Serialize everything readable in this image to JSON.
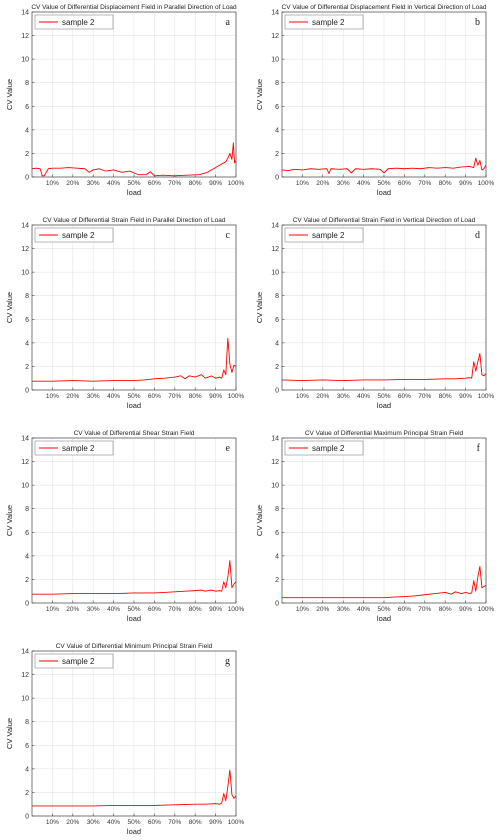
{
  "chart_data": [
    {
      "type": "line",
      "panel": "a",
      "title": "CV Value of Differential Displacement Field in Parallel Direction of Load",
      "xlabel": "load",
      "ylabel": "CV Value",
      "xlim": [
        0,
        100
      ],
      "ylim": [
        0,
        14
      ],
      "xticks": [
        10,
        20,
        30,
        40,
        50,
        60,
        70,
        80,
        90,
        100
      ],
      "xtick_labels": [
        "10%",
        "20%",
        "30%",
        "40%",
        "50%",
        "60%",
        "70%",
        "80%",
        "90%",
        "100%"
      ],
      "yticks": [
        0,
        2,
        4,
        6,
        8,
        10,
        12,
        14
      ],
      "grid": true,
      "legend_position": "top-left",
      "series": [
        {
          "name": "sample 2",
          "color": "#ff0000",
          "x": [
            0,
            2,
            4,
            5,
            6,
            8,
            10,
            14,
            18,
            22,
            26,
            28,
            30,
            33,
            36,
            40,
            44,
            48,
            52,
            56,
            58,
            60,
            64,
            70,
            76,
            82,
            86,
            89,
            91,
            93,
            95,
            96,
            97,
            98,
            98.7,
            99.3,
            100
          ],
          "y": [
            0.7,
            0.75,
            0.7,
            0.1,
            0.1,
            0.7,
            0.75,
            0.75,
            0.8,
            0.75,
            0.7,
            0.4,
            0.6,
            0.7,
            0.5,
            0.6,
            0.4,
            0.5,
            0.2,
            0.2,
            0.45,
            0.1,
            0.15,
            0.1,
            0.15,
            0.2,
            0.4,
            0.7,
            0.9,
            1.1,
            1.3,
            1.6,
            2.0,
            1.5,
            2.9,
            1.2,
            1.4
          ]
        }
      ]
    },
    {
      "type": "line",
      "panel": "b",
      "title": "CV Value of Differential Displacement Field in Vertical Direction of Load",
      "xlabel": "load",
      "ylabel": "CV Value",
      "xlim": [
        0,
        100
      ],
      "ylim": [
        0,
        14
      ],
      "xticks": [
        10,
        20,
        30,
        40,
        50,
        60,
        70,
        80,
        90,
        100
      ],
      "xtick_labels": [
        "10%",
        "20%",
        "30%",
        "40%",
        "50%",
        "60%",
        "70%",
        "80%",
        "90%",
        "100%"
      ],
      "yticks": [
        0,
        2,
        4,
        6,
        8,
        10,
        12,
        14
      ],
      "grid": true,
      "legend_position": "top-left",
      "series": [
        {
          "name": "sample 2",
          "color": "#ff0000",
          "x": [
            0,
            3,
            6,
            10,
            14,
            18,
            22,
            23,
            24,
            28,
            32,
            34,
            36,
            40,
            44,
            48,
            50,
            52,
            56,
            60,
            64,
            68,
            72,
            76,
            80,
            84,
            88,
            92,
            94,
            95,
            96,
            97,
            98,
            99,
            100
          ],
          "y": [
            0.6,
            0.55,
            0.65,
            0.6,
            0.7,
            0.65,
            0.7,
            0.3,
            0.7,
            0.65,
            0.7,
            0.35,
            0.7,
            0.65,
            0.7,
            0.65,
            0.35,
            0.7,
            0.75,
            0.7,
            0.75,
            0.7,
            0.8,
            0.75,
            0.8,
            0.75,
            0.85,
            0.9,
            0.8,
            1.6,
            1.0,
            1.4,
            0.6,
            0.7,
            1.0
          ]
        }
      ]
    },
    {
      "type": "line",
      "panel": "c",
      "title": "CV Value of Differential Strain Field in Parallel Direction of Load",
      "xlabel": "load",
      "ylabel": "CV Value",
      "xlim": [
        0,
        100
      ],
      "ylim": [
        0,
        14
      ],
      "xticks": [
        10,
        20,
        30,
        40,
        50,
        60,
        70,
        80,
        90,
        100
      ],
      "xtick_labels": [
        "10%",
        "20%",
        "30%",
        "40%",
        "50%",
        "60%",
        "70%",
        "80%",
        "90%",
        "100%"
      ],
      "yticks": [
        0,
        2,
        4,
        6,
        8,
        10,
        12,
        14
      ],
      "grid": true,
      "legend_position": "top-left",
      "series": [
        {
          "name": "sample 2",
          "color": "#ff0000",
          "x": [
            0,
            10,
            20,
            30,
            40,
            50,
            55,
            60,
            65,
            70,
            73,
            75,
            77,
            80,
            83,
            85,
            88,
            90,
            92,
            93,
            94,
            95,
            96,
            97,
            98,
            99,
            100
          ],
          "y": [
            0.75,
            0.75,
            0.8,
            0.75,
            0.8,
            0.8,
            0.85,
            0.95,
            1.0,
            1.1,
            1.2,
            0.95,
            1.2,
            1.1,
            1.3,
            1.0,
            1.2,
            1.0,
            1.1,
            1.0,
            1.7,
            1.3,
            4.4,
            2.2,
            1.5,
            2.1,
            2.0
          ]
        }
      ]
    },
    {
      "type": "line",
      "panel": "d",
      "title": "CV Value of Differential Strain Field in Vertical Direction of Load",
      "xlabel": "load",
      "ylabel": "CV Value",
      "xlim": [
        0,
        100
      ],
      "ylim": [
        0,
        14
      ],
      "xticks": [
        10,
        20,
        30,
        40,
        50,
        60,
        70,
        80,
        90,
        100
      ],
      "xtick_labels": [
        "10%",
        "20%",
        "30%",
        "40%",
        "50%",
        "60%",
        "70%",
        "80%",
        "90%",
        "100%"
      ],
      "yticks": [
        0,
        2,
        4,
        6,
        8,
        10,
        12,
        14
      ],
      "grid": true,
      "legend_position": "top-left",
      "series": [
        {
          "name": "sample 2",
          "color": "#ff0000",
          "x": [
            0,
            10,
            20,
            30,
            40,
            50,
            60,
            70,
            80,
            85,
            90,
            92,
            93,
            94,
            95,
            96,
            97,
            98,
            99,
            100
          ],
          "y": [
            0.85,
            0.8,
            0.85,
            0.8,
            0.85,
            0.85,
            0.9,
            0.9,
            0.95,
            0.95,
            1.0,
            1.05,
            1.0,
            2.4,
            1.6,
            2.4,
            3.1,
            1.3,
            1.2,
            1.4
          ]
        }
      ]
    },
    {
      "type": "line",
      "panel": "e",
      "title": "CV Value of Differential Shear Strain Field",
      "xlabel": "load",
      "ylabel": "CV Value",
      "xlim": [
        0,
        100
      ],
      "ylim": [
        0,
        14
      ],
      "xticks": [
        10,
        20,
        30,
        40,
        50,
        60,
        70,
        80,
        90,
        100
      ],
      "xtick_labels": [
        "10%",
        "20%",
        "30%",
        "40%",
        "50%",
        "60%",
        "70%",
        "80%",
        "90%",
        "100%"
      ],
      "yticks": [
        0,
        2,
        4,
        6,
        8,
        10,
        12,
        14
      ],
      "grid": true,
      "legend_position": "top-left",
      "series": [
        {
          "name": "sample 2",
          "color": "#ff0000",
          "x": [
            0,
            10,
            20,
            30,
            40,
            50,
            60,
            65,
            70,
            75,
            80,
            83,
            85,
            88,
            90,
            92,
            93,
            94,
            95,
            96,
            97,
            98,
            99,
            100
          ],
          "y": [
            0.75,
            0.75,
            0.8,
            0.8,
            0.8,
            0.85,
            0.85,
            0.9,
            0.95,
            1.0,
            1.05,
            1.1,
            1.0,
            1.1,
            1.0,
            1.05,
            1.0,
            1.8,
            1.3,
            2.2,
            3.6,
            1.3,
            1.6,
            1.8
          ]
        }
      ]
    },
    {
      "type": "line",
      "panel": "f",
      "title": "CV Value of Differential Maximum Principal Strain Field",
      "xlabel": "load",
      "ylabel": "CV Value",
      "xlim": [
        0,
        100
      ],
      "ylim": [
        0,
        14
      ],
      "xticks": [
        10,
        20,
        30,
        40,
        50,
        60,
        70,
        80,
        90,
        100
      ],
      "xtick_labels": [
        "10%",
        "20%",
        "30%",
        "40%",
        "50%",
        "60%",
        "70%",
        "80%",
        "90%",
        "100%"
      ],
      "yticks": [
        0,
        2,
        4,
        6,
        8,
        10,
        12,
        14
      ],
      "grid": true,
      "legend_position": "top-left",
      "series": [
        {
          "name": "sample 2",
          "color": "#ff0000",
          "x": [
            0,
            10,
            20,
            30,
            40,
            50,
            55,
            60,
            65,
            70,
            75,
            80,
            83,
            85,
            88,
            90,
            92,
            93,
            94,
            95,
            96,
            97,
            98,
            99,
            100
          ],
          "y": [
            0.45,
            0.45,
            0.45,
            0.45,
            0.45,
            0.45,
            0.5,
            0.55,
            0.6,
            0.7,
            0.8,
            0.9,
            0.75,
            0.95,
            0.8,
            0.9,
            0.8,
            0.85,
            1.9,
            1.0,
            2.2,
            3.1,
            1.3,
            1.4,
            1.5
          ]
        }
      ]
    },
    {
      "type": "line",
      "panel": "g",
      "title": "CV Value of Differential Minimum Principal Strain Field",
      "xlabel": "load",
      "ylabel": "CV Value",
      "xlim": [
        0,
        100
      ],
      "ylim": [
        0,
        14
      ],
      "xticks": [
        10,
        20,
        30,
        40,
        50,
        60,
        70,
        80,
        90,
        100
      ],
      "xtick_labels": [
        "10%",
        "20%",
        "30%",
        "40%",
        "50%",
        "60%",
        "70%",
        "80%",
        "90%",
        "100%"
      ],
      "yticks": [
        0,
        2,
        4,
        6,
        8,
        10,
        12,
        14
      ],
      "grid": true,
      "legend_position": "top-left",
      "series": [
        {
          "name": "sample 2",
          "color": "#ff0000",
          "x": [
            0,
            10,
            20,
            30,
            40,
            50,
            60,
            70,
            80,
            85,
            90,
            92,
            93,
            94,
            95,
            96,
            97,
            98,
            99,
            100
          ],
          "y": [
            0.85,
            0.85,
            0.85,
            0.85,
            0.9,
            0.9,
            0.9,
            0.95,
            1.0,
            1.0,
            1.05,
            1.0,
            1.1,
            1.9,
            1.3,
            2.5,
            3.9,
            1.8,
            1.5,
            1.7
          ]
        }
      ]
    }
  ]
}
